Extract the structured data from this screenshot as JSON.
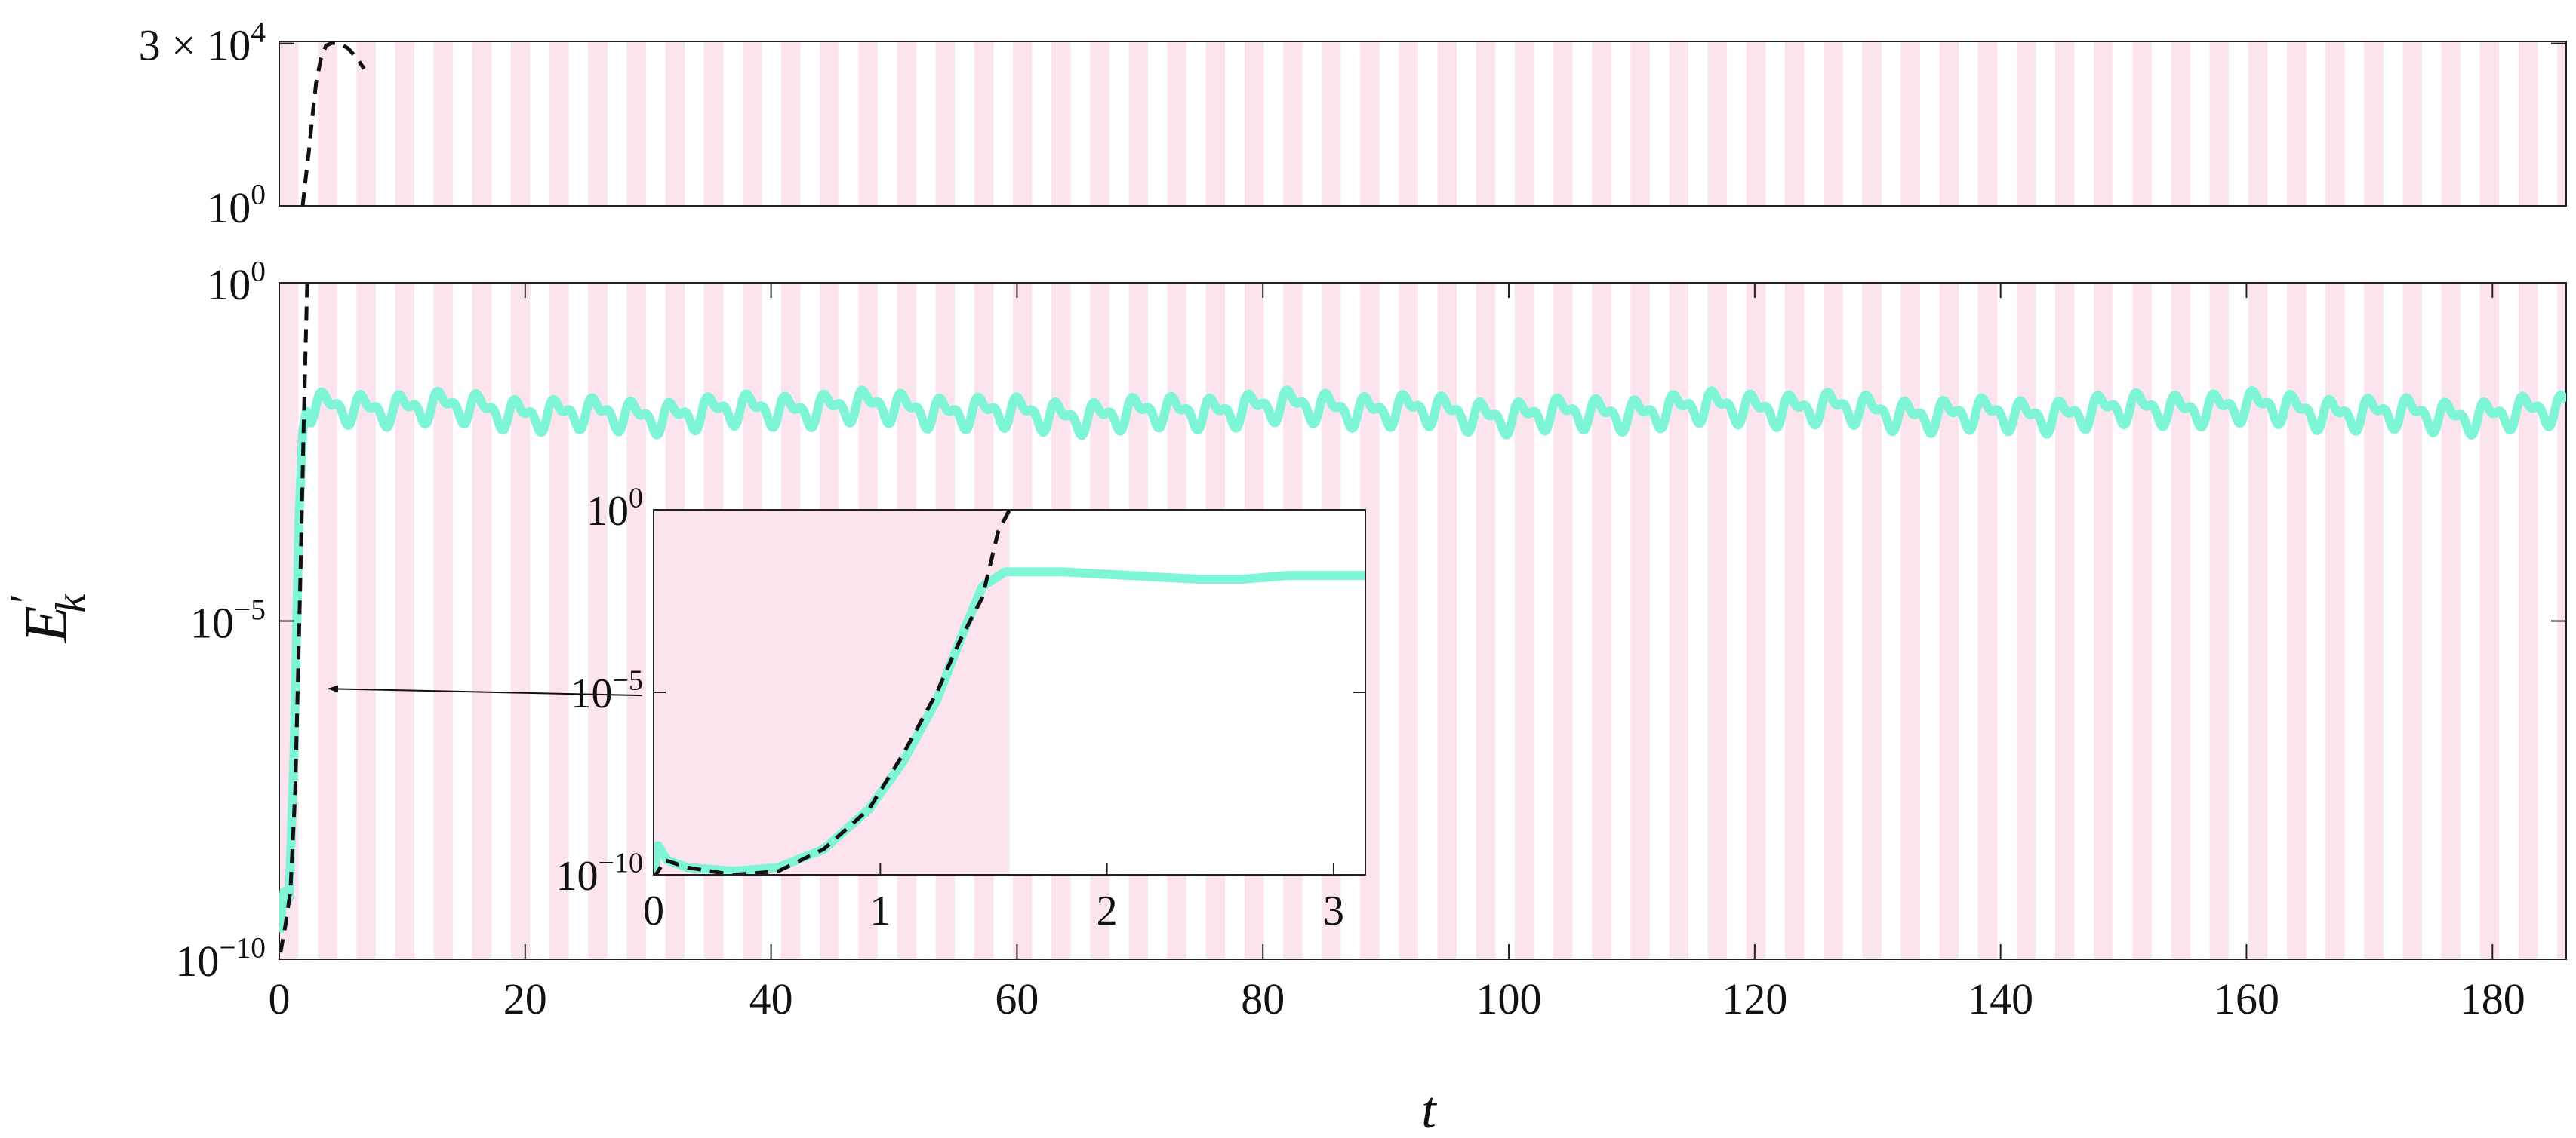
{
  "chart_data": [
    {
      "panel": "top",
      "type": "line",
      "xlim": [
        0,
        186
      ],
      "ylim_labels": [
        "1",
        "30000"
      ],
      "y_scale": "log",
      "y_tick_labels": [
        {
          "base": "10",
          "exp": "0",
          "value": 1
        },
        {
          "prefix": "3 × ",
          "base": "10",
          "exp": "4",
          "value": 30000
        }
      ],
      "shading": {
        "color": "#fce4ef",
        "band_period": 3.14,
        "band_width": 1.57
      },
      "series": [
        {
          "style": "dashed",
          "color": "#111111",
          "points": [
            [
              1.9,
              1
            ],
            [
              2.1,
              4
            ],
            [
              2.4,
              30
            ],
            [
              2.7,
              300
            ],
            [
              3.0,
              2500
            ],
            [
              3.4,
              12000
            ],
            [
              3.8,
              26000
            ],
            [
              4.3,
              31000
            ],
            [
              4.9,
              30000
            ],
            [
              5.6,
              22000
            ],
            [
              6.3,
              12000
            ],
            [
              6.9,
              6000
            ]
          ]
        }
      ]
    },
    {
      "panel": "main",
      "type": "line",
      "xlabel": "t",
      "ylabel_base": "E",
      "ylabel_sub": "k",
      "ylabel_prime": "′",
      "xlim": [
        0,
        186
      ],
      "x_ticks": [
        0,
        20,
        40,
        60,
        80,
        100,
        120,
        140,
        160,
        180
      ],
      "y_scale": "log",
      "ylim_exp": [
        -10,
        0
      ],
      "y_ticks": [
        {
          "base": "10",
          "exp": "−10",
          "value_exp": -10
        },
        {
          "base": "10",
          "exp": "−5",
          "value_exp": -5
        },
        {
          "base": "10",
          "exp": "0",
          "value_exp": 0
        }
      ],
      "shading": {
        "color": "#fce4ef",
        "band_period": 3.14,
        "band_width": 1.57
      },
      "series": [
        {
          "style": "solid",
          "color": "#7ff5d8",
          "description_level_exp": -1.7,
          "initial_points_exp": [
            [
              0,
              -9.6
            ],
            [
              0.4,
              -9.0
            ],
            [
              0.8,
              -9.1
            ],
            [
              1.2,
              -7.0
            ],
            [
              1.6,
              -3.5
            ],
            [
              1.9,
              -2.2
            ],
            [
              2.2,
              -1.9
            ],
            [
              2.6,
              -2.0
            ]
          ],
          "oscillation": {
            "mean_exp": -1.85,
            "amplitude_exp": 0.3,
            "period": 3.14
          }
        },
        {
          "style": "dashed",
          "color": "#111111",
          "points_exp": [
            [
              0.1,
              -9.9
            ],
            [
              0.5,
              -9.5
            ],
            [
              0.9,
              -9.0
            ],
            [
              1.3,
              -7.5
            ],
            [
              1.7,
              -4.5
            ],
            [
              2.0,
              -2.0
            ],
            [
              2.3,
              0.2
            ]
          ]
        }
      ],
      "annotation": {
        "type": "arrow",
        "from": [
          29.5,
          -6.1
        ],
        "to": [
          4.0,
          -6.0
        ]
      }
    },
    {
      "panel": "inset",
      "type": "line",
      "xlim": [
        0,
        3.14
      ],
      "x_ticks": [
        0,
        1,
        2,
        3
      ],
      "y_scale": "log",
      "ylim_exp": [
        -10,
        0
      ],
      "y_ticks": [
        {
          "base": "10",
          "exp": "−10",
          "value_exp": -10
        },
        {
          "base": "10",
          "exp": "−5",
          "value_exp": -5
        },
        {
          "base": "10",
          "exp": "0",
          "value_exp": 0
        }
      ],
      "shading_range": [
        0,
        1.57
      ],
      "shading_color": "#fce4ef",
      "series": [
        {
          "style": "solid",
          "color": "#7ff5d8",
          "points_exp": [
            [
              0,
              -10.0
            ],
            [
              0.02,
              -9.2
            ],
            [
              0.06,
              -9.6
            ],
            [
              0.15,
              -9.8
            ],
            [
              0.35,
              -9.9
            ],
            [
              0.55,
              -9.8
            ],
            [
              0.75,
              -9.3
            ],
            [
              0.95,
              -8.2
            ],
            [
              1.1,
              -6.9
            ],
            [
              1.25,
              -5.2
            ],
            [
              1.35,
              -3.6
            ],
            [
              1.45,
              -2.1
            ],
            [
              1.55,
              -1.7
            ],
            [
              1.8,
              -1.7
            ],
            [
              2.1,
              -1.8
            ],
            [
              2.4,
              -1.9
            ],
            [
              2.6,
              -1.9
            ],
            [
              2.8,
              -1.8
            ],
            [
              3.14,
              -1.8
            ]
          ]
        },
        {
          "style": "dashed",
          "color": "#111111",
          "points_exp": [
            [
              0,
              -10.1
            ],
            [
              0.05,
              -9.6
            ],
            [
              0.15,
              -9.8
            ],
            [
              0.35,
              -10.0
            ],
            [
              0.55,
              -9.9
            ],
            [
              0.75,
              -9.3
            ],
            [
              0.95,
              -8.2
            ],
            [
              1.1,
              -6.7
            ],
            [
              1.25,
              -5.0
            ],
            [
              1.35,
              -3.6
            ],
            [
              1.45,
              -2.4
            ],
            [
              1.52,
              -0.6
            ],
            [
              1.57,
              0.0
            ]
          ]
        }
      ]
    }
  ]
}
